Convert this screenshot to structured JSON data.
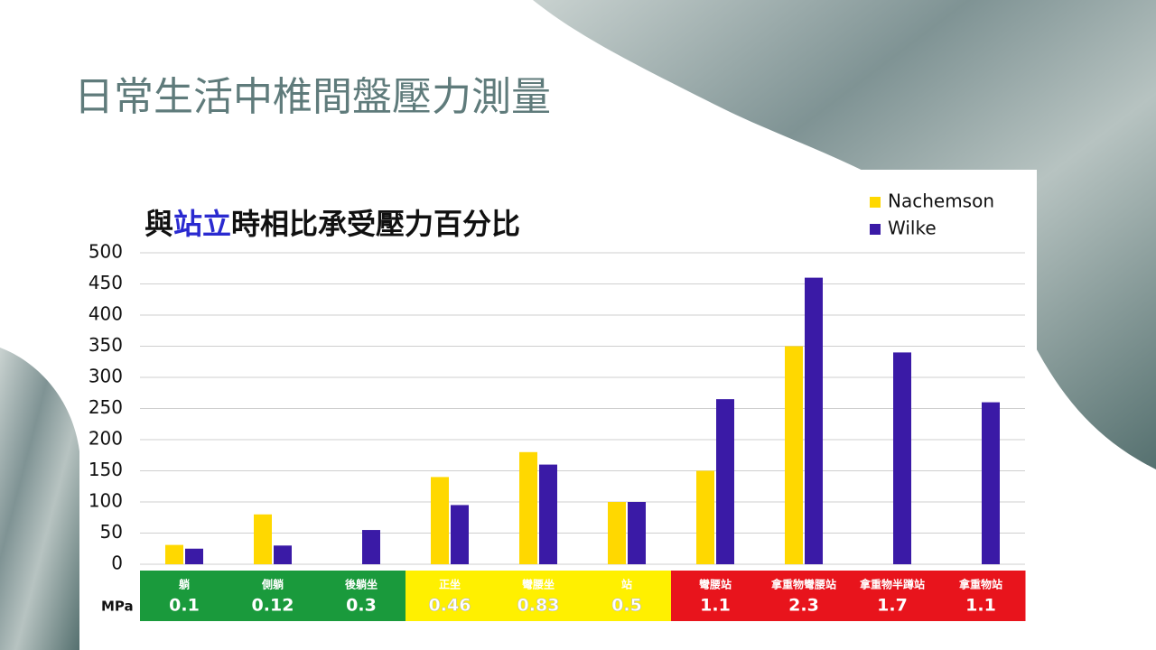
{
  "page_title": "日常生活中椎間盤壓力測量",
  "chart_data": {
    "type": "bar",
    "title": [
      "與",
      "站立",
      "時相比承受壓力百分比"
    ],
    "categories": [
      "躺",
      "側躺",
      "後躺坐",
      "正坐",
      "彎腰坐",
      "站",
      "彎腰站",
      "拿重物彎腰站",
      "拿重物半蹲站",
      "拿重物站"
    ],
    "series": [
      {
        "name": "Nachemson",
        "color": "#ffd800",
        "values": [
          31,
          80,
          null,
          140,
          180,
          100,
          150,
          350,
          null,
          null
        ]
      },
      {
        "name": "Wilke",
        "color": "#3a1aa6",
        "values": [
          25,
          30,
          55,
          95,
          160,
          100,
          265,
          460,
          340,
          260
        ]
      }
    ],
    "ylim": [
      0,
      500
    ],
    "yticks": [
      0,
      50,
      100,
      150,
      200,
      250,
      300,
      350,
      400,
      450,
      500
    ],
    "grid": true,
    "legend": "top-right",
    "mpa_label": "MPa",
    "mpa": [
      0.1,
      0.12,
      0.3,
      0.46,
      0.83,
      0.5,
      1.1,
      2.3,
      1.7,
      1.1
    ],
    "mpa_colors": [
      "#1a9a3c",
      "#1a9a3c",
      "#1a9a3c",
      "#fff000",
      "#fff000",
      "#fff000",
      "#e8141c",
      "#e8141c",
      "#e8141c",
      "#e8141c"
    ]
  }
}
